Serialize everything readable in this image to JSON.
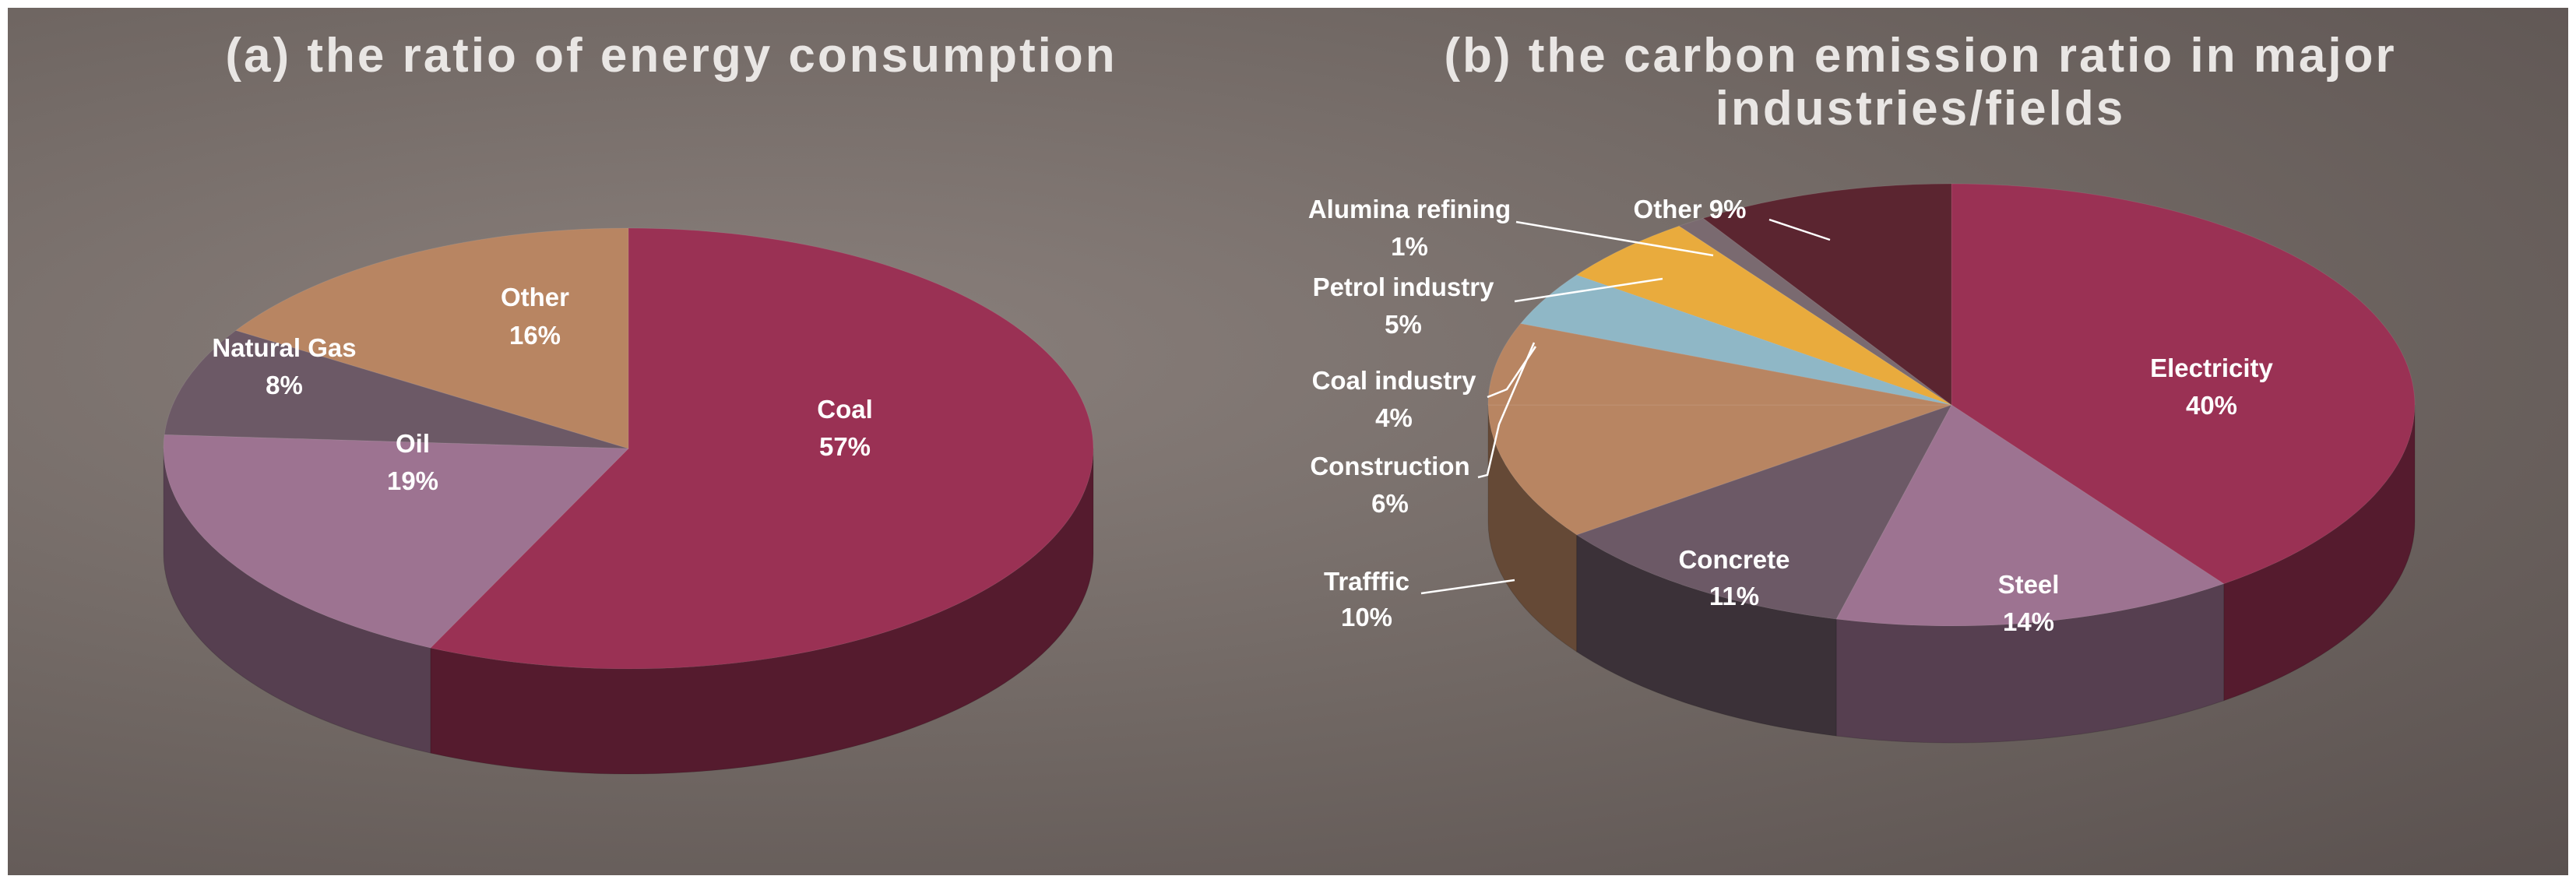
{
  "chart_data": [
    {
      "type": "pie",
      "title": "(a) the ratio of energy consumption",
      "slices": [
        {
          "name": "Coal",
          "value": 57,
          "label": "57%",
          "color": "#9a3154"
        },
        {
          "name": "Oil",
          "value": 19,
          "label": "19%",
          "color": "#9d7391"
        },
        {
          "name": "Natural Gas",
          "value": 8,
          "label": "8%",
          "color": "#6c5966"
        },
        {
          "name": "Other",
          "value": 16,
          "label": "16%",
          "color": "#b88562"
        }
      ]
    },
    {
      "type": "pie",
      "title": "(b) the carbon emission ratio in major industries/fields",
      "title_lines": [
        "(b) the carbon emission ratio in major",
        "industries/fields"
      ],
      "slices": [
        {
          "name": "Electricity",
          "value": 40,
          "label": "40%",
          "color": "#9a3154"
        },
        {
          "name": "Steel",
          "value": 14,
          "label": "14%",
          "color": "#9d7391"
        },
        {
          "name": "Concrete",
          "value": 11,
          "label": "11%",
          "color": "#6c5966"
        },
        {
          "name": "Trafffic",
          "value": 10,
          "label": "10%",
          "color": "#b88562"
        },
        {
          "name": "Construction",
          "value": 6,
          "label": "6%",
          "color": "#b88562"
        },
        {
          "name": "Coal industry",
          "value": 4,
          "label": "4%",
          "color": "#8fb7c6"
        },
        {
          "name": "Petrol industry",
          "value": 5,
          "label": "5%",
          "color": "#e9ab3d"
        },
        {
          "name": "Alumina refining",
          "value": 1,
          "label": "1%",
          "color": "#7a6a70"
        },
        {
          "name": "Other",
          "value": 9,
          "label": "9%",
          "color": "#5b2530"
        }
      ]
    }
  ]
}
